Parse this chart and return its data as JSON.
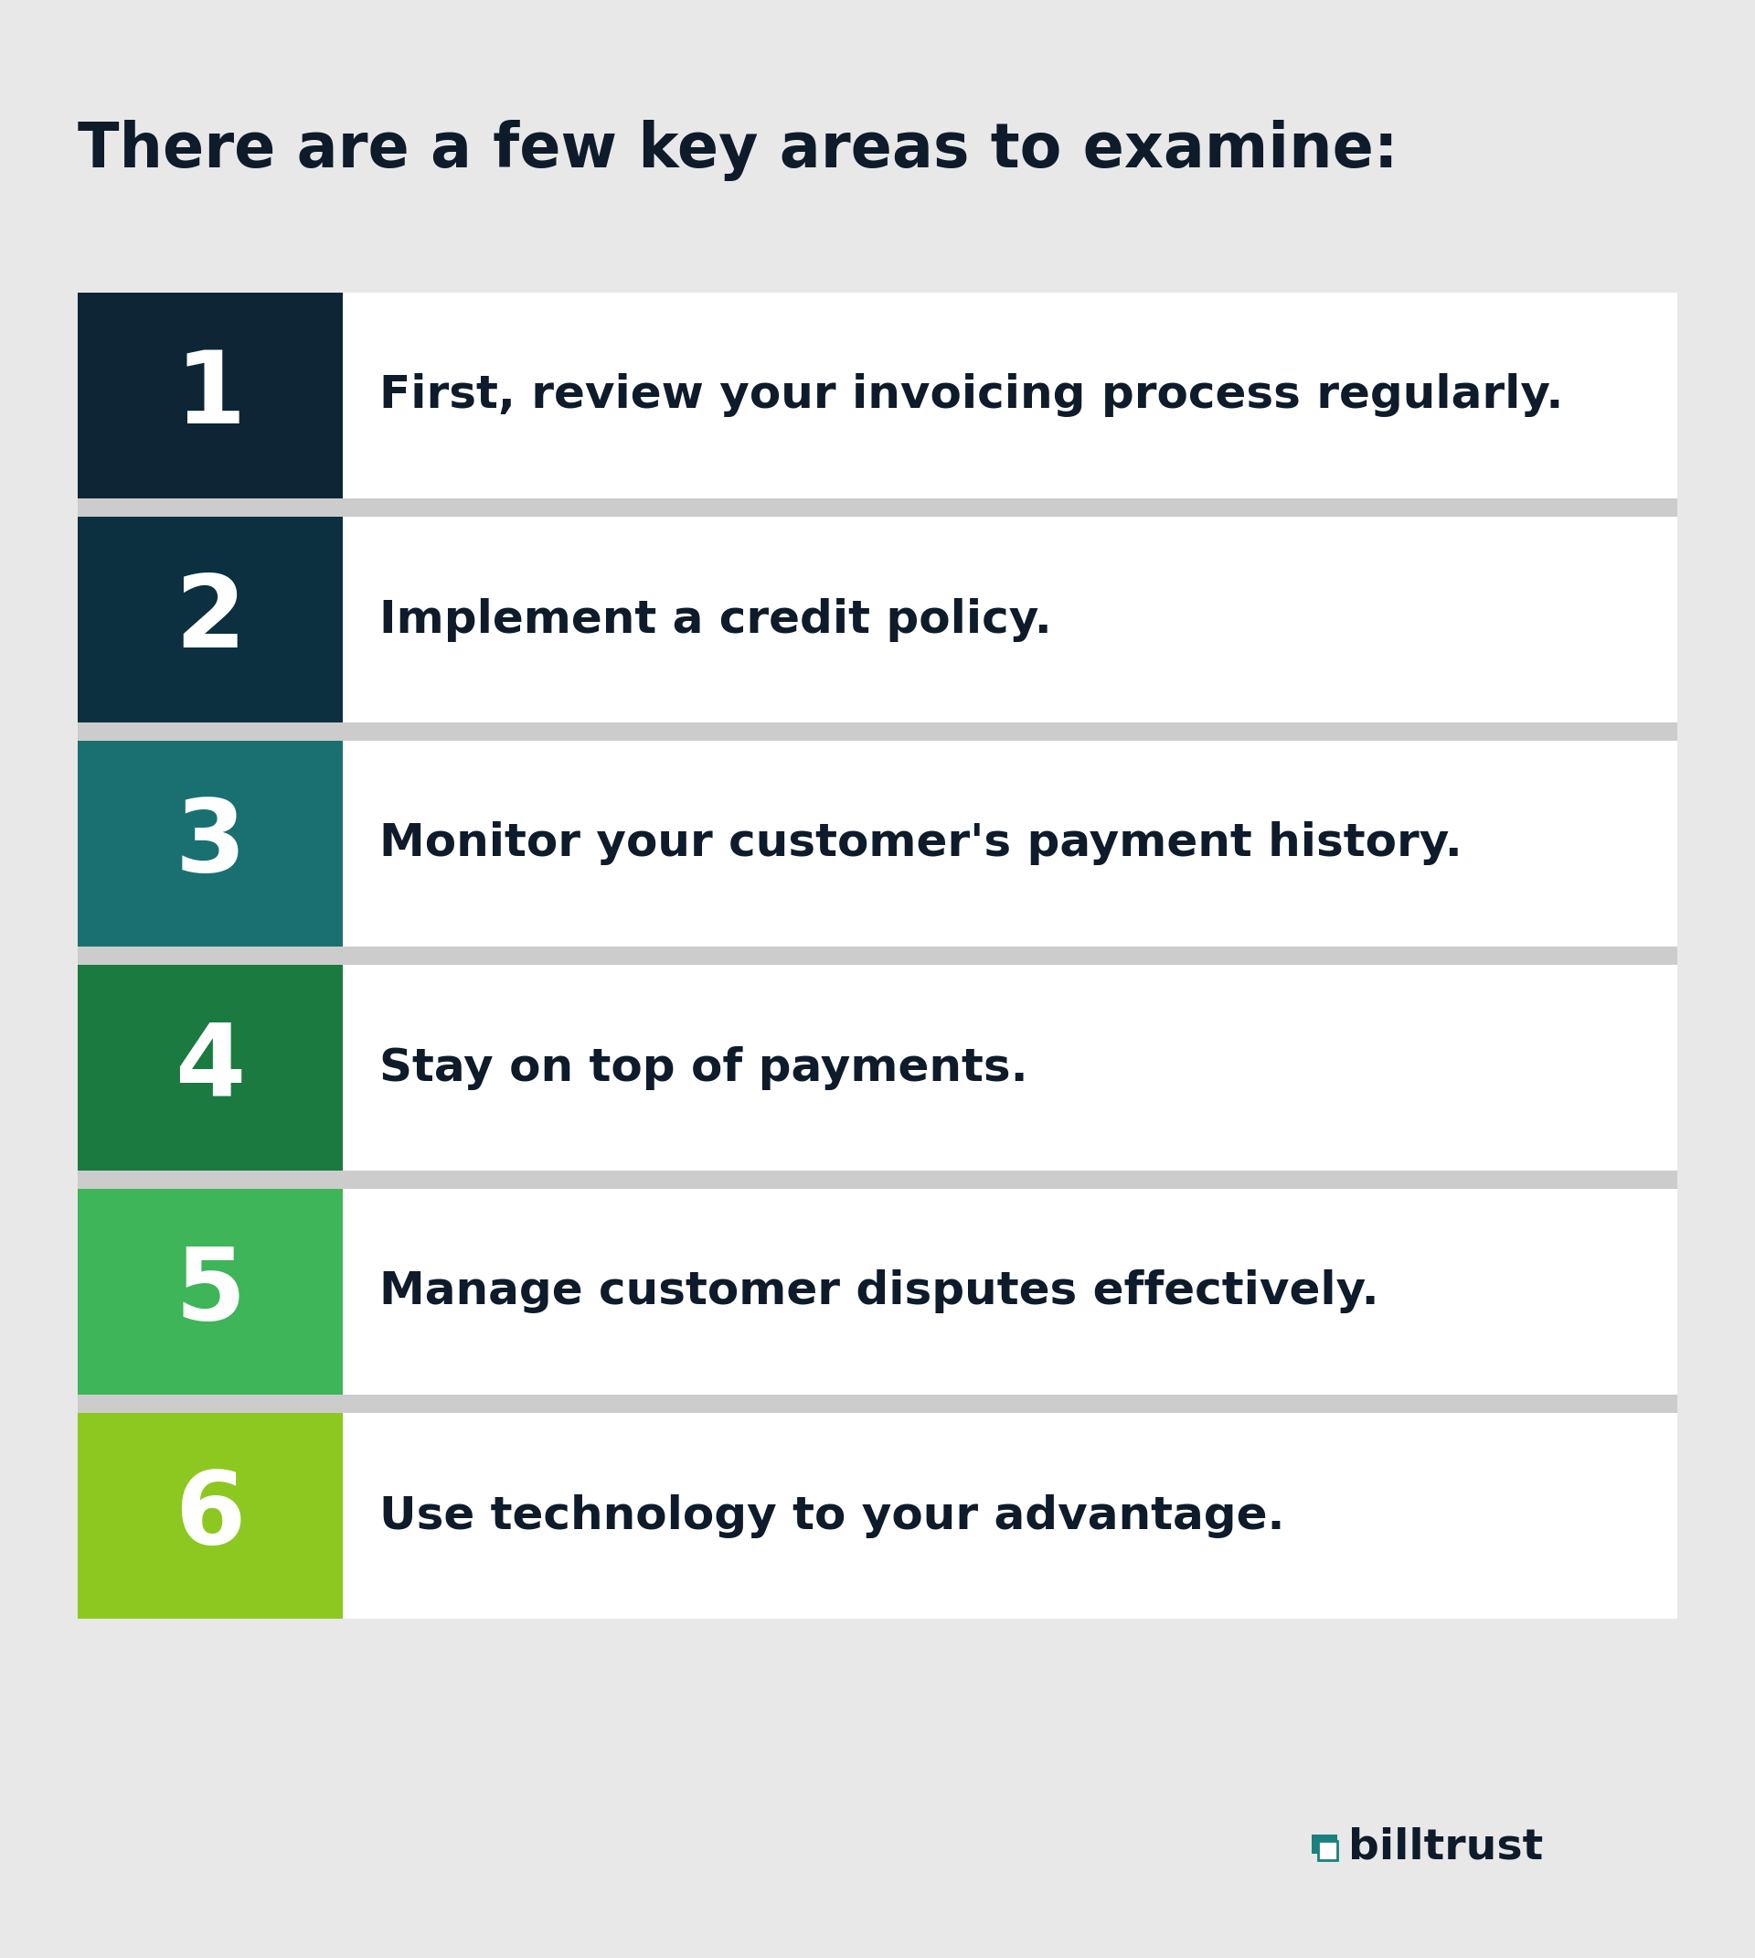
{
  "title": "There are a few key areas to examine:",
  "background_color": "#e8e8e8",
  "title_color": "#0d1b2a",
  "title_fontsize": 48,
  "title_fontweight": "bold",
  "items": [
    {
      "number": "1",
      "text": "First, review your invoicing process regularly.",
      "box_color": "#0d2535"
    },
    {
      "number": "2",
      "text": "Implement a credit policy.",
      "box_color": "#0d3040"
    },
    {
      "number": "3",
      "text": "Monitor your customer's payment history.",
      "box_color": "#1a7070"
    },
    {
      "number": "4",
      "text": "Stay on top of payments.",
      "box_color": "#1a7a40"
    },
    {
      "number": "5",
      "text": "Manage customer disputes effectively.",
      "box_color": "#3db558"
    },
    {
      "number": "6",
      "text": "Use technology to your advantage.",
      "box_color": "#8dc820"
    }
  ],
  "number_fontsize": 80,
  "text_fontsize": 36,
  "text_color": "#0d1b2a",
  "number_color": "#ffffff",
  "row_bg_color": "#ffffff",
  "gap_color": "#cccccc",
  "logo_text": "billtrust",
  "logo_color": "#0d1b2a",
  "logo_fontsize": 34,
  "icon_color1": "#1a8080",
  "icon_color2": "#8dc820"
}
